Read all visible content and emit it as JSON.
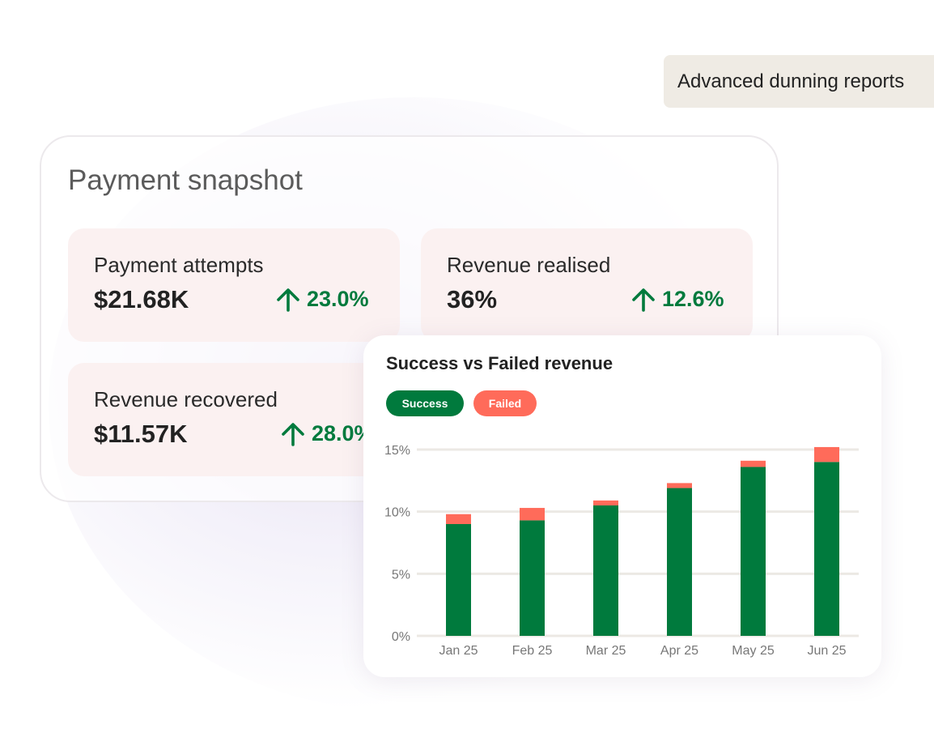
{
  "tag_label": "Advanced dunning reports",
  "snapshot": {
    "title": "Payment snapshot",
    "metrics": [
      {
        "label": "Payment attempts",
        "value": "$21.68K",
        "delta": "23.0%"
      },
      {
        "label": "Revenue realised",
        "value": "36%",
        "delta": "12.6%"
      },
      {
        "label": "Revenue recovered",
        "value": "$11.57K",
        "delta": "28.0%"
      }
    ]
  },
  "colors": {
    "success": "#007a3d",
    "failed": "#ff6b5a",
    "delta_up": "#007a3d",
    "metric_bg": "#fbf1f1",
    "tag_bg": "#efebe4"
  },
  "icons": {
    "delta": "arrow-up-icon"
  },
  "chart_data": {
    "type": "bar",
    "stacked": true,
    "title": "Success vs Failed revenue",
    "categories": [
      "Jan 25",
      "Feb 25",
      "Mar 25",
      "Apr 25",
      "May 25",
      "Jun 25"
    ],
    "series": [
      {
        "name": "Success",
        "values": [
          9.0,
          9.3,
          10.5,
          11.9,
          13.6,
          14.0
        ]
      },
      {
        "name": "Failed",
        "values": [
          0.8,
          1.0,
          0.4,
          0.4,
          0.5,
          1.2
        ]
      }
    ],
    "ylim": [
      0,
      15
    ],
    "yticks": [
      0,
      5,
      10,
      15
    ],
    "ytick_labels": [
      "0%",
      "5%",
      "10%",
      "15%"
    ],
    "grid": true,
    "legend_position": "top-left"
  }
}
